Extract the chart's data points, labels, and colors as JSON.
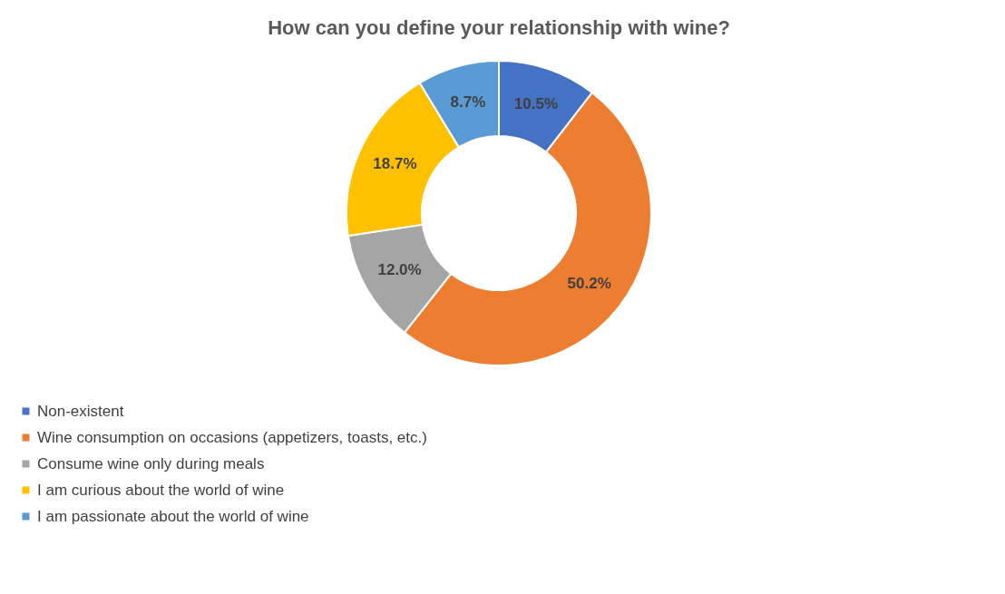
{
  "chart_data": {
    "type": "donut",
    "title": "How can you define your relationship with wine?",
    "categories": [
      "Non-existent",
      "Wine consumption on occasions (appetizers, toasts, etc.)",
      "Consume wine only during meals",
      "I am curious about the world of wine",
      "I am passionate about the world of wine"
    ],
    "values": [
      10.5,
      50.2,
      12.0,
      18.7,
      8.7
    ],
    "colors": [
      "#4472c4",
      "#ed7d31",
      "#a5a5a5",
      "#ffc000",
      "#5b9bd5"
    ],
    "value_labels": [
      "10.5%",
      "50.2%",
      "12.0%",
      "18.7%",
      "8.7%"
    ],
    "legend": "bottom"
  }
}
